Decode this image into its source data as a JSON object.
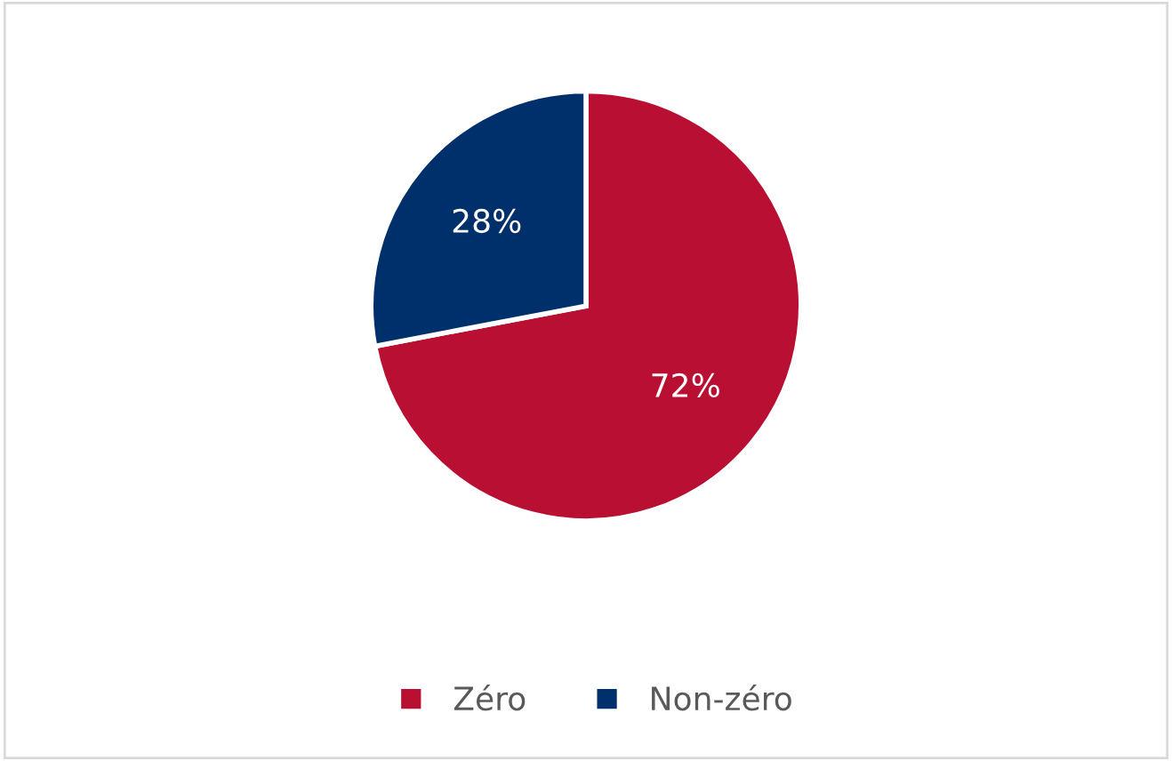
{
  "chart_data": {
    "type": "pie",
    "categories": [
      "Zéro",
      "Non-zéro"
    ],
    "values": [
      72,
      28
    ],
    "colors": [
      "#b80f32",
      "#00306b"
    ],
    "value_labels": [
      "72%",
      "28%"
    ],
    "legend": "bottom"
  }
}
